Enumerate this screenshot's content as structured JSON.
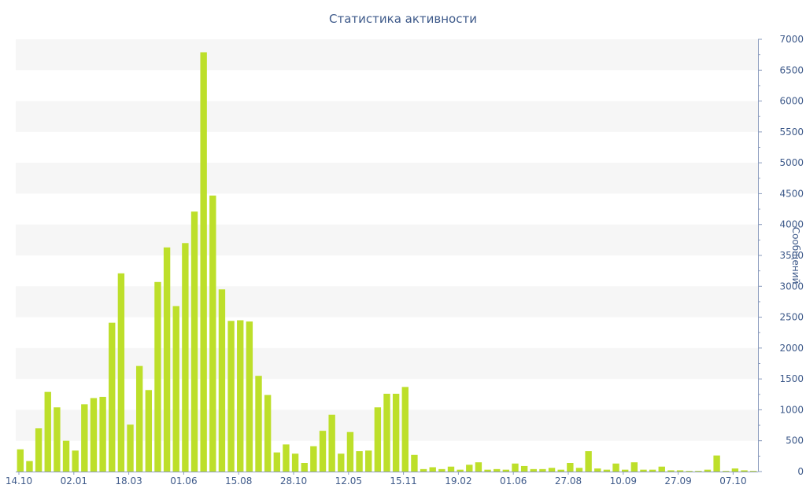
{
  "chart_data": {
    "type": "bar",
    "title": "Статистика активности",
    "xlabel": "",
    "ylabel": "Сообщений",
    "y_axis_side": "right",
    "ylim": [
      0,
      7000
    ],
    "y_ticks": [
      0,
      500,
      1000,
      1500,
      2000,
      2500,
      3000,
      3500,
      4000,
      4500,
      5000,
      5500,
      6000,
      6500,
      7000
    ],
    "x_tick_labels": [
      "14.10",
      "02.01",
      "18.03",
      "01.06",
      "15.08",
      "28.10",
      "12.05",
      "15.11",
      "19.02",
      "01.06",
      "27.08",
      "10.09",
      "27.09",
      "07.10"
    ],
    "grid": "horizontal alternating bands",
    "bar_color": "#bddf2a",
    "values": [
      360,
      170,
      700,
      1290,
      1040,
      500,
      340,
      1090,
      1190,
      1210,
      2410,
      3210,
      760,
      1710,
      1320,
      3070,
      3630,
      2680,
      3700,
      4210,
      6790,
      4470,
      2950,
      2440,
      2450,
      2430,
      1550,
      1240,
      310,
      440,
      290,
      140,
      410,
      660,
      920,
      290,
      640,
      330,
      340,
      1040,
      1260,
      1260,
      1370,
      270,
      40,
      70,
      40,
      80,
      30,
      110,
      150,
      30,
      40,
      30,
      130,
      90,
      40,
      40,
      60,
      30,
      140,
      60,
      330,
      50,
      30,
      130,
      30,
      150,
      30,
      30,
      80,
      20,
      20,
      10,
      10,
      30,
      260,
      10,
      50,
      20,
      10
    ]
  }
}
